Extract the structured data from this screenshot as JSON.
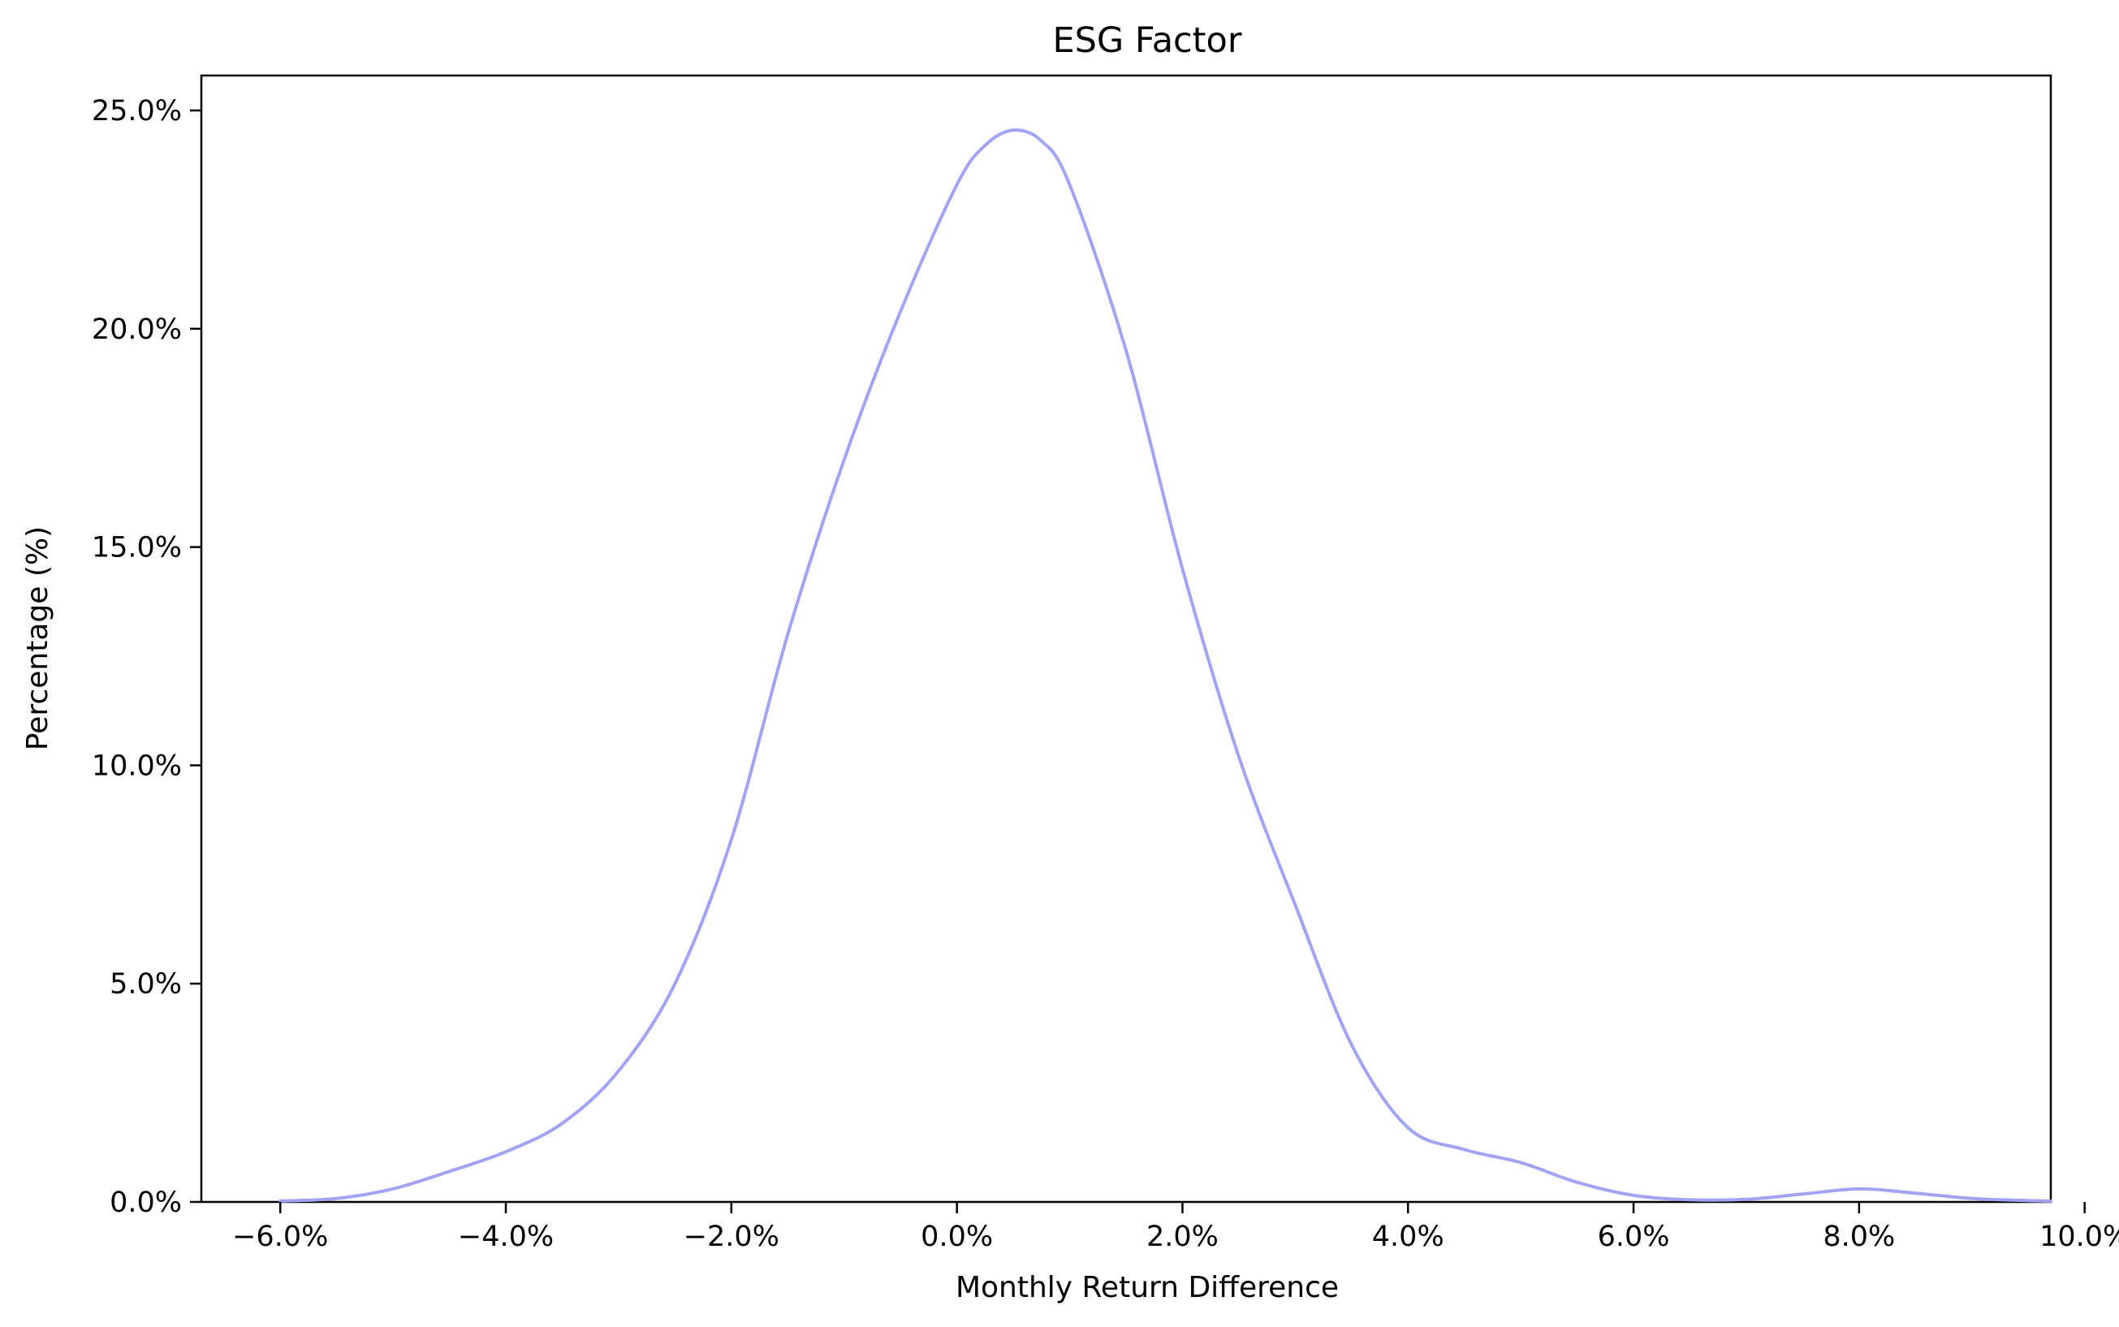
{
  "chart_data": {
    "type": "line",
    "title": "ESG Factor",
    "xlabel": "Monthly Return Difference",
    "ylabel": "Percentage (%)",
    "xlim": [
      -6.7,
      9.7
    ],
    "ylim": [
      0,
      25.8
    ],
    "x_ticks": [
      {
        "value": -6,
        "label": "−6.0%"
      },
      {
        "value": -4,
        "label": "−4.0%"
      },
      {
        "value": -2,
        "label": "−2.0%"
      },
      {
        "value": 0,
        "label": "0.0%"
      },
      {
        "value": 2,
        "label": "2.0%"
      },
      {
        "value": 4,
        "label": "4.0%"
      },
      {
        "value": 6,
        "label": "6.0%"
      },
      {
        "value": 8,
        "label": "8.0%"
      },
      {
        "value": 10,
        "label": "10.0%"
      }
    ],
    "y_ticks": [
      {
        "value": 0,
        "label": "0.0%"
      },
      {
        "value": 5,
        "label": "5.0%"
      },
      {
        "value": 10,
        "label": "10.0%"
      },
      {
        "value": 15,
        "label": "15.0%"
      },
      {
        "value": 20,
        "label": "20.0%"
      },
      {
        "value": 25,
        "label": "25.0%"
      }
    ],
    "grid": false,
    "line_color": "#a3a3f5",
    "series": [
      {
        "x": [
          -6.0,
          -5.5,
          -5.0,
          -4.5,
          -4.0,
          -3.5,
          -3.0,
          -2.5,
          -2.0,
          -1.5,
          -1.0,
          -0.5,
          0.0,
          0.25,
          0.5,
          0.75,
          1.0,
          1.5,
          2.0,
          2.5,
          3.0,
          3.5,
          4.0,
          4.5,
          5.0,
          5.5,
          6.0,
          6.5,
          7.0,
          7.5,
          8.0,
          8.5,
          9.0,
          9.5,
          9.7
        ],
        "y": [
          0.02,
          0.08,
          0.3,
          0.7,
          1.15,
          1.8,
          3.0,
          5.0,
          8.3,
          13.0,
          17.0,
          20.4,
          23.3,
          24.2,
          24.55,
          24.3,
          23.3,
          19.5,
          14.5,
          10.2,
          6.8,
          3.6,
          1.7,
          1.2,
          0.9,
          0.45,
          0.15,
          0.05,
          0.06,
          0.18,
          0.3,
          0.2,
          0.08,
          0.03,
          0.02
        ]
      }
    ]
  }
}
